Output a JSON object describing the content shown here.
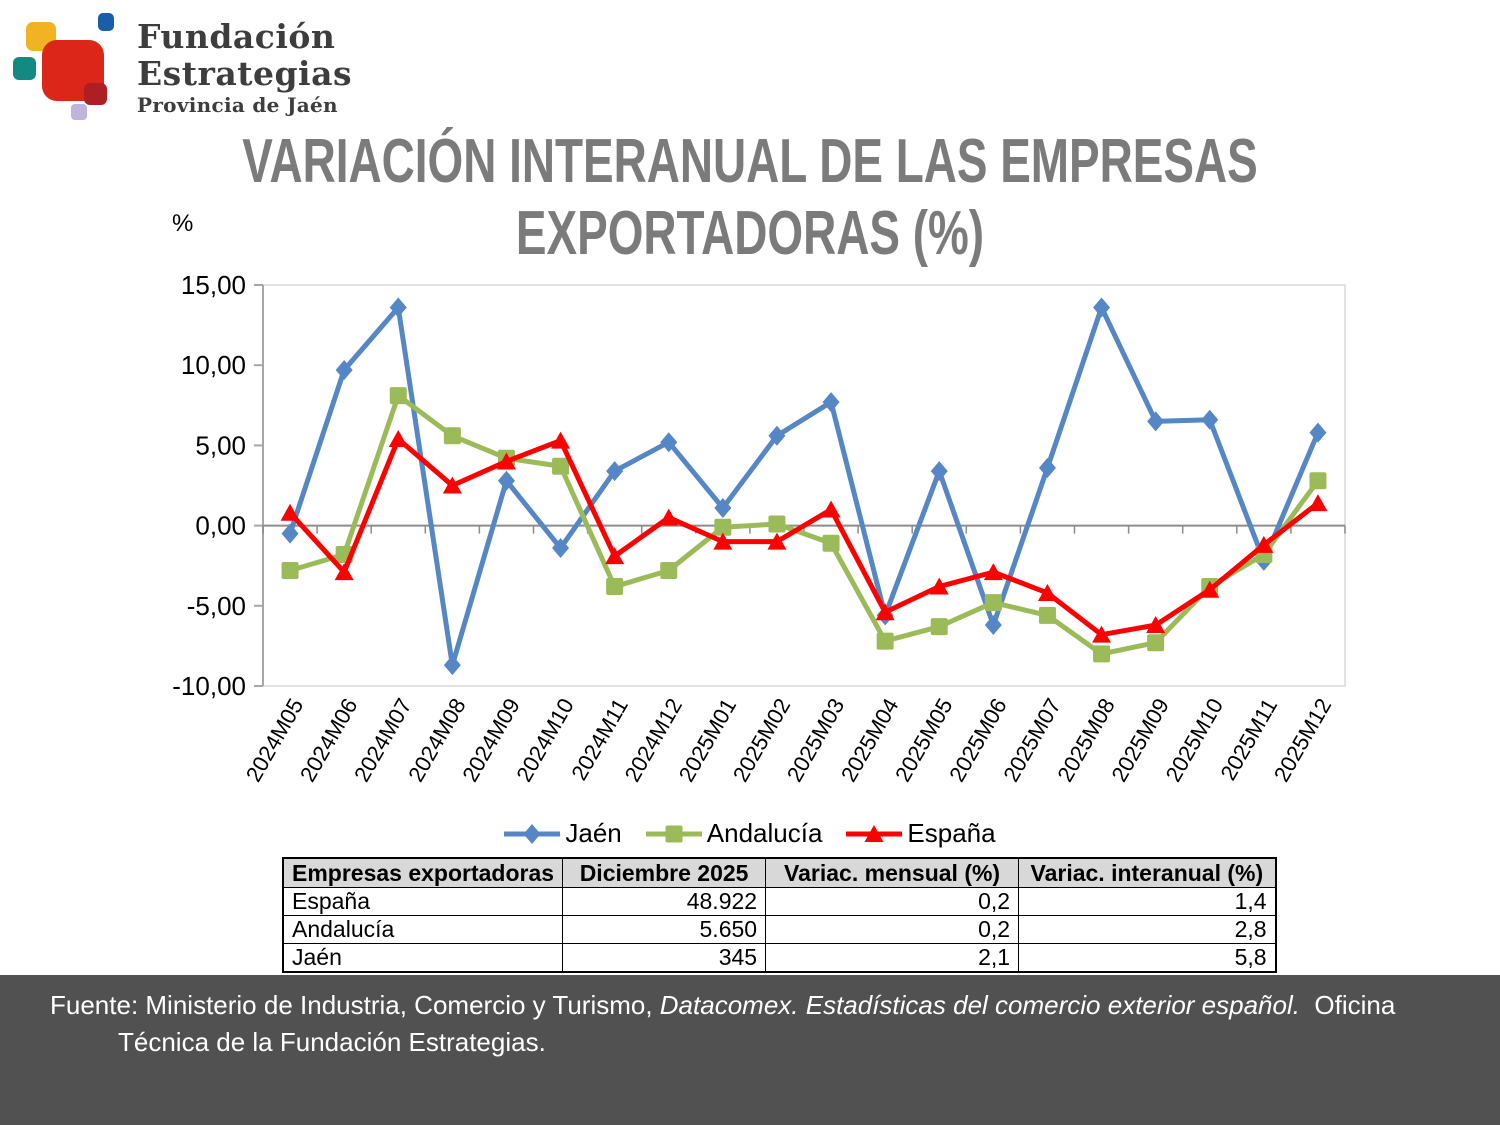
{
  "logo": {
    "title_line1": "Fundación",
    "title_line2": "Estrategias",
    "subtitle": "Provincia de Jaén",
    "colors": {
      "yellow": "#F2B322",
      "blue": "#1A5DA8",
      "teal": "#128A82",
      "red": "#DB2619",
      "dark_red": "#AD1F23",
      "purple": "#C0B3DC"
    }
  },
  "title": {
    "line1": "VARIACIÓN INTERANUAL DE LAS EMPRESAS",
    "line2": "EXPORTADORAS (%)"
  },
  "y_unit": "%",
  "chart_data": {
    "type": "line",
    "title": "VARIACIÓN INTERANUAL DE LAS EMPRESAS EXPORTADORAS (%)",
    "ylabel": "%",
    "ylim": [
      -10,
      15
    ],
    "grid": false,
    "legend_position": "bottom",
    "yticks": [
      {
        "v": 15,
        "label": "15,00"
      },
      {
        "v": 10,
        "label": "10,00"
      },
      {
        "v": 5,
        "label": "5,00"
      },
      {
        "v": 0,
        "label": "0,00"
      },
      {
        "v": -5,
        "label": "-5,00"
      },
      {
        "v": -10,
        "label": "-10,00"
      }
    ],
    "categories": [
      "2024M05",
      "2024M06",
      "2024M07",
      "2024M08",
      "2024M09",
      "2024M10",
      "2024M11",
      "2024M12",
      "2025M01",
      "2025M02",
      "2025M03",
      "2025M04",
      "2025M05",
      "2025M06",
      "2025M07",
      "2025M08",
      "2025M09",
      "2025M10",
      "2025M11",
      "2025M12"
    ],
    "series": [
      {
        "name": "Jaén",
        "color": "#5586C5",
        "marker": "diamond",
        "values": [
          -0.5,
          9.7,
          13.6,
          -8.7,
          2.8,
          -1.4,
          3.4,
          5.2,
          1.1,
          5.6,
          7.7,
          -5.6,
          3.4,
          -6.2,
          3.6,
          13.6,
          6.5,
          6.6,
          -2.2,
          5.8
        ]
      },
      {
        "name": "Andalucía",
        "color": "#9BBB59",
        "marker": "square",
        "values": [
          -2.8,
          -1.8,
          8.1,
          5.6,
          4.2,
          3.7,
          -3.8,
          -2.8,
          -0.1,
          0.1,
          -1.1,
          -7.2,
          -6.3,
          -4.8,
          -5.6,
          -8.0,
          -7.3,
          -3.8,
          -1.8,
          2.8
        ]
      },
      {
        "name": "España",
        "color": "#FE0000",
        "marker": "triangle",
        "values": [
          0.8,
          -2.9,
          5.4,
          2.5,
          4.0,
          5.3,
          -1.9,
          0.5,
          -1.0,
          -1.0,
          1.0,
          -5.4,
          -3.8,
          -2.9,
          -4.2,
          -6.8,
          -6.2,
          -4.0,
          -1.2,
          1.4
        ]
      }
    ]
  },
  "table": {
    "headers": [
      "Empresas exportadoras",
      "Diciembre 2025",
      "Variac. mensual (%)",
      "Variac. interanual (%)"
    ],
    "rows": [
      [
        "España",
        "48.922",
        "0,2",
        "1,4"
      ],
      [
        "Andalucía",
        "5.650",
        "0,2",
        "2,8"
      ],
      [
        "Jaén",
        "345",
        "2,1",
        "5,8"
      ]
    ]
  },
  "footer": {
    "normal1": "Fuente: Ministerio de Industria, Comercio y Turismo, ",
    "italic": "Datacomex. Estadísticas del comercio exterior español.",
    "normal2": "  Oficina Técnica de la Fundación Estrategias."
  }
}
